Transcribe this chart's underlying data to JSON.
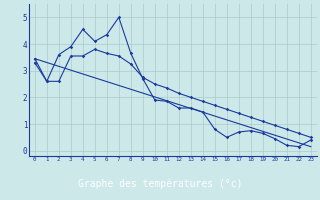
{
  "title": "Graphe des températures (°c)",
  "bg_color": "#cce8e8",
  "plot_bg_color": "#cce8e8",
  "label_bg_color": "#1a3a9e",
  "line_color": "#1a3a9e",
  "grid_color": "#aacccc",
  "xlim": [
    -0.5,
    23.5
  ],
  "ylim": [
    -0.2,
    5.5
  ],
  "xticks": [
    0,
    1,
    2,
    3,
    4,
    5,
    6,
    7,
    8,
    9,
    10,
    11,
    12,
    13,
    14,
    15,
    16,
    17,
    18,
    19,
    20,
    21,
    22,
    23
  ],
  "yticks": [
    0,
    1,
    2,
    3,
    4,
    5
  ],
  "upper_line_x": [
    0,
    1,
    2,
    3,
    4,
    5,
    6,
    7,
    8,
    9,
    10,
    11,
    12,
    13,
    14,
    15,
    16,
    17,
    18,
    19,
    20,
    21,
    22,
    23
  ],
  "upper_line_y": [
    3.45,
    2.6,
    3.6,
    3.9,
    4.55,
    4.1,
    4.35,
    5.0,
    3.65,
    2.7,
    1.9,
    1.85,
    1.6,
    1.6,
    1.45,
    0.8,
    0.5,
    0.7,
    0.75,
    0.65,
    0.45,
    0.2,
    0.15,
    0.4
  ],
  "straight_line_x": [
    0,
    23
  ],
  "straight_line_y": [
    3.45,
    0.15
  ],
  "lower_line_x": [
    0,
    1,
    2,
    3,
    4,
    5,
    6,
    7,
    8,
    9,
    10,
    11,
    12,
    13,
    14,
    15,
    16,
    17,
    18,
    19,
    20,
    21,
    22,
    23
  ],
  "lower_line_y": [
    3.3,
    2.6,
    2.6,
    3.55,
    3.55,
    3.8,
    3.65,
    3.55,
    3.25,
    2.75,
    2.5,
    2.35,
    2.15,
    2.0,
    1.85,
    1.7,
    1.55,
    1.4,
    1.25,
    1.1,
    0.95,
    0.8,
    0.65,
    0.5
  ],
  "x_values": [
    0,
    1,
    2,
    3,
    4,
    5,
    6,
    7,
    8,
    9,
    10,
    11,
    12,
    13,
    14,
    15,
    16,
    17,
    18,
    19,
    20,
    21,
    22,
    23
  ]
}
